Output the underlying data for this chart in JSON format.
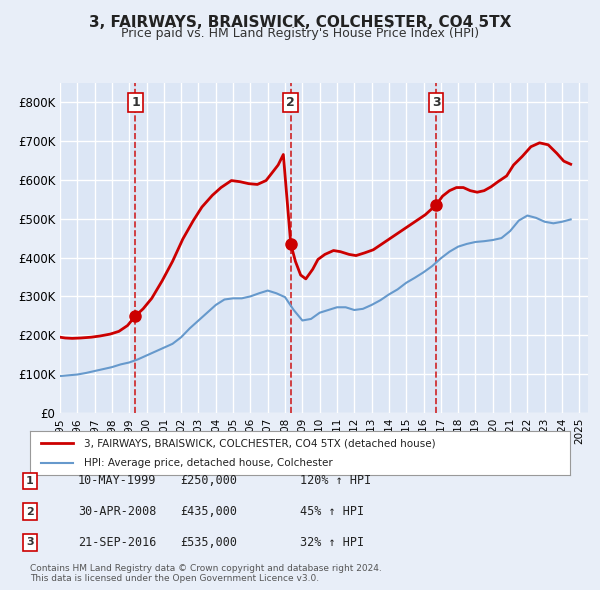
{
  "title": "3, FAIRWAYS, BRAISWICK, COLCHESTER, CO4 5TX",
  "subtitle": "Price paid vs. HM Land Registry's House Price Index (HPI)",
  "bg_color": "#e8eef8",
  "plot_bg_color": "#dce6f5",
  "grid_color": "#ffffff",
  "legend_label_red": "3, FAIRWAYS, BRAISWICK, COLCHESTER, CO4 5TX (detached house)",
  "legend_label_blue": "HPI: Average price, detached house, Colchester",
  "footer": "Contains HM Land Registry data © Crown copyright and database right 2024.\nThis data is licensed under the Open Government Licence v3.0.",
  "sale_points": [
    {
      "label": "1",
      "date_num": 1999.36,
      "price": 250000,
      "date_str": "10-MAY-1999",
      "pct": "120%",
      "arrow": "↑"
    },
    {
      "label": "2",
      "date_num": 2008.33,
      "price": 435000,
      "date_str": "30-APR-2008",
      "pct": "45%",
      "arrow": "↑"
    },
    {
      "label": "3",
      "date_num": 2016.72,
      "price": 535000,
      "date_str": "21-SEP-2016",
      "pct": "32%",
      "arrow": "↑"
    }
  ],
  "vline_color": "#cc0000",
  "dot_color": "#cc0000",
  "red_line_color": "#cc0000",
  "blue_line_color": "#6699cc",
  "ylim": [
    0,
    850000
  ],
  "xlim": [
    1995.0,
    2025.5
  ],
  "yticks": [
    0,
    100000,
    200000,
    300000,
    400000,
    500000,
    600000,
    700000,
    800000
  ],
  "ytick_labels": [
    "£0",
    "£100K",
    "£200K",
    "£300K",
    "£400K",
    "£500K",
    "£600K",
    "£700K",
    "£800K"
  ],
  "hpi_data": {
    "years": [
      1995.0,
      1995.5,
      1996.0,
      1996.5,
      1997.0,
      1997.5,
      1998.0,
      1998.5,
      1999.0,
      1999.5,
      2000.0,
      2000.5,
      2001.0,
      2001.5,
      2002.0,
      2002.5,
      2003.0,
      2003.5,
      2004.0,
      2004.5,
      2005.0,
      2005.5,
      2006.0,
      2006.5,
      2007.0,
      2007.5,
      2008.0,
      2008.5,
      2009.0,
      2009.5,
      2010.0,
      2010.5,
      2011.0,
      2011.5,
      2012.0,
      2012.5,
      2013.0,
      2013.5,
      2014.0,
      2014.5,
      2015.0,
      2015.5,
      2016.0,
      2016.5,
      2017.0,
      2017.5,
      2018.0,
      2018.5,
      2019.0,
      2019.5,
      2020.0,
      2020.5,
      2021.0,
      2021.5,
      2022.0,
      2022.5,
      2023.0,
      2023.5,
      2024.0,
      2024.5
    ],
    "values": [
      95000,
      97000,
      99000,
      103000,
      108000,
      113000,
      118000,
      125000,
      130000,
      138000,
      148000,
      158000,
      168000,
      178000,
      195000,
      218000,
      238000,
      258000,
      278000,
      292000,
      295000,
      295000,
      300000,
      308000,
      315000,
      308000,
      298000,
      265000,
      238000,
      242000,
      258000,
      265000,
      272000,
      272000,
      265000,
      268000,
      278000,
      290000,
      305000,
      318000,
      335000,
      348000,
      362000,
      378000,
      398000,
      415000,
      428000,
      435000,
      440000,
      442000,
      445000,
      450000,
      468000,
      495000,
      508000,
      502000,
      492000,
      488000,
      492000,
      498000
    ]
  },
  "price_data": {
    "years": [
      1995.0,
      1995.3,
      1995.7,
      1996.2,
      1996.8,
      1997.3,
      1997.9,
      1998.4,
      1998.9,
      1999.36,
      1999.8,
      2000.3,
      2000.9,
      2001.5,
      2002.1,
      2002.7,
      2003.2,
      2003.8,
      2004.3,
      2004.9,
      2005.4,
      2005.9,
      2006.4,
      2006.9,
      2007.2,
      2007.6,
      2007.9,
      2008.33,
      2008.6,
      2008.9,
      2009.2,
      2009.6,
      2009.9,
      2010.3,
      2010.8,
      2011.2,
      2011.7,
      2012.1,
      2012.6,
      2013.1,
      2013.6,
      2014.1,
      2014.6,
      2015.1,
      2015.6,
      2016.1,
      2016.72,
      2017.1,
      2017.5,
      2017.9,
      2018.3,
      2018.7,
      2019.1,
      2019.5,
      2019.9,
      2020.3,
      2020.8,
      2021.2,
      2021.7,
      2022.2,
      2022.7,
      2023.2,
      2023.7,
      2024.1,
      2024.5
    ],
    "values": [
      195000,
      193000,
      192000,
      193000,
      195000,
      198000,
      203000,
      210000,
      225000,
      250000,
      268000,
      295000,
      340000,
      390000,
      448000,
      495000,
      530000,
      560000,
      580000,
      598000,
      595000,
      590000,
      588000,
      598000,
      615000,
      638000,
      665000,
      435000,
      390000,
      355000,
      345000,
      370000,
      395000,
      408000,
      418000,
      415000,
      408000,
      405000,
      412000,
      420000,
      435000,
      450000,
      465000,
      480000,
      495000,
      510000,
      535000,
      558000,
      572000,
      580000,
      580000,
      572000,
      568000,
      572000,
      582000,
      595000,
      610000,
      638000,
      660000,
      685000,
      695000,
      690000,
      668000,
      648000,
      640000
    ]
  }
}
